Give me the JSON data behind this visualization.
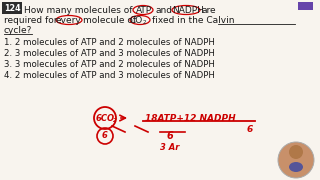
{
  "question_number": "124",
  "options": [
    "1. 2 molecules of ATP and 2 molecules of NADPH",
    "2. 3 molecules of ATP and 3 molecules of NADPH",
    "3. 3 molecules of ATP and 2 molecules of NADPH",
    "4. 2 molecules of ATP and 3 molecules of NADPH"
  ],
  "bg_color": "#f8f4ee",
  "text_color": "#1a1a1a",
  "red_color": "#cc0000",
  "q_num_bg": "#2d2d2d",
  "q_num_text": "#ffffff",
  "purple_box": "#6644aa",
  "person_color": "#c8906a"
}
